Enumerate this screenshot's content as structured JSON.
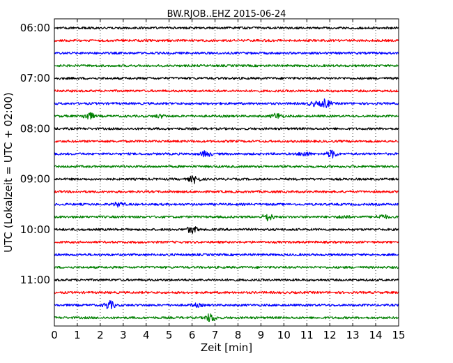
{
  "chart_data": {
    "type": "line",
    "title": "BW.RJOB..EHZ 2015-06-24",
    "xlabel": "Zeit  [min]",
    "ylabel": "UTC (Lokalzeit = UTC + 02:00)",
    "xlim": [
      0,
      15
    ],
    "x_ticks": [
      "0",
      "1",
      "2",
      "3",
      "4",
      "5",
      "6",
      "7",
      "8",
      "9",
      "10",
      "11",
      "12",
      "13",
      "14",
      "15"
    ],
    "y_ticks": [
      "06:00",
      "07:00",
      "08:00",
      "09:00",
      "10:00",
      "11:00"
    ],
    "grid": "vertical dotted",
    "trace_interval_minutes": 15,
    "trace_colors": [
      "#000000",
      "#ff0000",
      "#0000ff",
      "#008000"
    ],
    "traces": [
      {
        "start": "06:00",
        "color": "#000000",
        "events": []
      },
      {
        "start": "06:15",
        "color": "#ff0000",
        "events": []
      },
      {
        "start": "06:30",
        "color": "#0000ff",
        "events": []
      },
      {
        "start": "06:45",
        "color": "#008000",
        "events": []
      },
      {
        "start": "07:00",
        "color": "#000000",
        "events": []
      },
      {
        "start": "07:15",
        "color": "#ff0000",
        "events": []
      },
      {
        "start": "07:30",
        "color": "#0000ff",
        "events": [
          {
            "t": 11.8,
            "amp": 6
          },
          {
            "t": 11.3,
            "amp": 3
          }
        ]
      },
      {
        "start": "07:45",
        "color": "#008000",
        "events": [
          {
            "t": 1.5,
            "amp": 5
          },
          {
            "t": 9.7,
            "amp": 4
          },
          {
            "t": 4.6,
            "amp": 2
          }
        ]
      },
      {
        "start": "08:00",
        "color": "#000000",
        "events": []
      },
      {
        "start": "08:15",
        "color": "#ff0000",
        "events": []
      },
      {
        "start": "08:30",
        "color": "#0000ff",
        "events": [
          {
            "t": 6.6,
            "amp": 4
          },
          {
            "t": 12.1,
            "amp": 5
          },
          {
            "t": 10.9,
            "amp": 3
          }
        ]
      },
      {
        "start": "08:45",
        "color": "#008000",
        "events": []
      },
      {
        "start": "09:00",
        "color": "#000000",
        "events": [
          {
            "t": 6.1,
            "amp": 5
          }
        ]
      },
      {
        "start": "09:15",
        "color": "#ff0000",
        "events": []
      },
      {
        "start": "09:30",
        "color": "#0000ff",
        "events": [
          {
            "t": 2.8,
            "amp": 3
          }
        ]
      },
      {
        "start": "09:45",
        "color": "#008000",
        "events": [
          {
            "t": 9.3,
            "amp": 5
          },
          {
            "t": 14.3,
            "amp": 3
          },
          {
            "t": 12.6,
            "amp": 2
          }
        ]
      },
      {
        "start": "10:00",
        "color": "#000000",
        "events": [
          {
            "t": 6.0,
            "amp": 5
          }
        ]
      },
      {
        "start": "10:15",
        "color": "#ff0000",
        "events": []
      },
      {
        "start": "10:30",
        "color": "#0000ff",
        "events": []
      },
      {
        "start": "10:45",
        "color": "#008000",
        "events": []
      },
      {
        "start": "11:00",
        "color": "#000000",
        "events": []
      },
      {
        "start": "11:15",
        "color": "#ff0000",
        "events": []
      },
      {
        "start": "11:30",
        "color": "#0000ff",
        "events": [
          {
            "t": 2.4,
            "amp": 6
          },
          {
            "t": 6.2,
            "amp": 2
          }
        ]
      },
      {
        "start": "11:45",
        "color": "#008000",
        "events": [
          {
            "t": 6.8,
            "amp": 6
          }
        ]
      }
    ]
  }
}
